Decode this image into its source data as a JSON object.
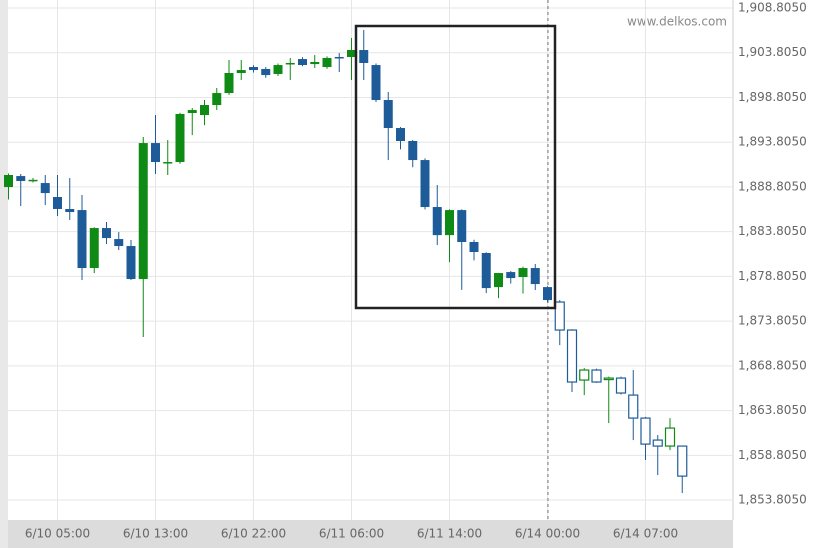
{
  "chart_data": {
    "type": "candlestick",
    "watermark": "www.delkos.com",
    "categories": [
      null,
      null,
      null,
      null,
      "6/10 05:00",
      null,
      null,
      null,
      null,
      null,
      null,
      null,
      "6/10 13:00",
      null,
      null,
      null,
      null,
      null,
      null,
      null,
      "6/10 22:00",
      null,
      null,
      null,
      null,
      null,
      null,
      null,
      "6/11 06:00",
      null,
      null,
      null,
      null,
      null,
      null,
      null,
      "6/11 14:00",
      null,
      null,
      null,
      null,
      null,
      null,
      null,
      "6/14 00:00",
      null,
      null,
      null,
      null,
      null,
      null,
      null,
      "6/14 07:00",
      null,
      null,
      null
    ],
    "open": [
      1888.79,
      1890.02,
      1889.5,
      1889.24,
      1887.68,
      1886.34,
      1886.22,
      1879.74,
      1884.21,
      1882.98,
      1882.2,
      1878.51,
      1893.71,
      1891.48,
      1891.59,
      1897.07,
      1896.84,
      1897.96,
      1899.3,
      1901.54,
      1902.21,
      1901.99,
      1901.43,
      1902.54,
      1903.1,
      1902.54,
      1902.21,
      1903.33,
      1903.33,
      1904.11,
      1902.43,
      1898.52,
      1895.39,
      1893.94,
      1891.81,
      1886.56,
      1883.42,
      1886.22,
      1882.65,
      1881.42,
      1877.61,
      1879.29,
      1878.74,
      1879.74,
      1877.61,
      1875.94,
      1872.81,
      1867.22,
      1868.34,
      1867.33,
      1867.44,
      1865.54,
      1862.97,
      1860.51,
      1859.84,
      1859.84
    ],
    "high": [
      1890.3,
      1890.25,
      1889.8,
      1890.14,
      1890.14,
      1889.8,
      1887.9,
      1884.3,
      1884.88,
      1883.76,
      1882.87,
      1894.38,
      1896.84,
      1894.05,
      1897.1,
      1897.63,
      1898.52,
      1899.86,
      1903.0,
      1902.99,
      1902.4,
      1902.2,
      1902.6,
      1903.22,
      1903.3,
      1903.55,
      1903.4,
      1903.77,
      1905.45,
      1906.35,
      1902.6,
      1899.41,
      1895.5,
      1894.05,
      1892.0,
      1889.02,
      1886.3,
      1886.3,
      1882.9,
      1881.5,
      1879.2,
      1879.4,
      1879.9,
      1880.19,
      1877.7,
      1876.16,
      1872.9,
      1868.56,
      1868.5,
      1867.6,
      1867.6,
      1868.34,
      1863.1,
      1861.07,
      1862.97,
      1859.9
    ],
    "low": [
      1887.4,
      1886.67,
      1889.3,
      1886.78,
      1885.55,
      1885.11,
      1878.4,
      1879.18,
      1882.42,
      1881.75,
      1878.4,
      1872.03,
      1890.25,
      1890.14,
      1891.4,
      1894.6,
      1895.72,
      1897.4,
      1899.1,
      1900.76,
      1901.6,
      1901.0,
      1901.2,
      1900.76,
      1902.3,
      1902.1,
      1902.0,
      1901.65,
      1900.76,
      1900.76,
      1898.3,
      1891.81,
      1893.0,
      1891.0,
      1886.3,
      1882.31,
      1880.4,
      1877.3,
      1880.6,
      1876.94,
      1876.38,
      1878.0,
      1876.9,
      1877.28,
      1875.9,
      1871.13,
      1865.88,
      1865.54,
      1866.9,
      1862.41,
      1865.6,
      1860.51,
      1858.28,
      1856.6,
      1859.39,
      1854.59
    ],
    "close": [
      1890.14,
      1889.47,
      1889.6,
      1888.12,
      1886.34,
      1886.0,
      1879.74,
      1884.21,
      1883.09,
      1882.2,
      1878.51,
      1893.71,
      1891.59,
      1891.59,
      1896.96,
      1897.4,
      1897.96,
      1899.3,
      1901.54,
      1901.87,
      1901.87,
      1901.31,
      1902.43,
      1902.66,
      1902.43,
      1902.77,
      1903.22,
      1903.22,
      1904.11,
      1902.66,
      1898.52,
      1895.39,
      1893.94,
      1891.81,
      1886.56,
      1883.42,
      1886.22,
      1882.65,
      1881.53,
      1877.5,
      1879.18,
      1878.62,
      1879.74,
      1877.95,
      1876.16,
      1872.81,
      1867.0,
      1868.34,
      1867.0,
      1867.44,
      1865.77,
      1862.97,
      1860.06,
      1859.84,
      1861.85,
      1856.48
    ],
    "up_color": "#0f8a14",
    "down_color": "#1e5c99",
    "hollow_from": 45,
    "ylim": [
      1851.8,
      1909.7
    ],
    "yticks": [
      {
        "value": 1908.805,
        "label": "1,908.8050"
      },
      {
        "value": 1903.805,
        "label": "1,903.8050"
      },
      {
        "value": 1898.805,
        "label": "1,898.8050"
      },
      {
        "value": 1893.805,
        "label": "1,893.8050"
      },
      {
        "value": 1888.805,
        "label": "1,888.8050"
      },
      {
        "value": 1883.805,
        "label": "1,883.8050"
      },
      {
        "value": 1878.805,
        "label": "1,878.8050"
      },
      {
        "value": 1873.805,
        "label": "1,873.8050"
      },
      {
        "value": 1868.805,
        "label": "1,868.8050"
      },
      {
        "value": 1863.805,
        "label": "1,863.8050"
      },
      {
        "value": 1858.805,
        "label": "1,858.8050"
      },
      {
        "value": 1853.805,
        "label": "1,853.8050"
      }
    ],
    "grid": true
  }
}
